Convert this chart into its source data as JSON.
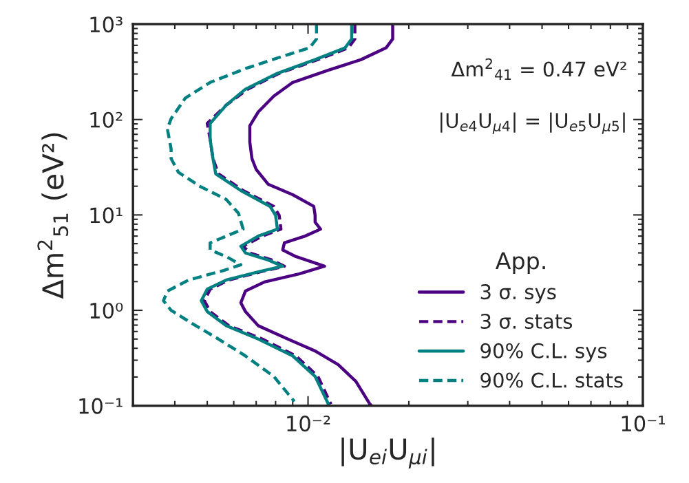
{
  "chart_data": {
    "type": "line",
    "xlabel": "|U$_{ei}$U$_{μi}$|",
    "ylabel": "Δm$^{2}$$_{51}$ (eV²)",
    "log": "xy",
    "xlim": [
      0.003,
      0.1
    ],
    "ylim": [
      0.1,
      1000
    ],
    "xticks": [
      {
        "value": 0.01,
        "label": "10⁻²"
      },
      {
        "value": 0.1,
        "label": "10⁻¹"
      }
    ],
    "yticks": [
      {
        "value": 0.1,
        "label": "10⁻¹"
      },
      {
        "value": 1,
        "label": "10⁰"
      },
      {
        "value": 10,
        "label": "10¹"
      },
      {
        "value": 100,
        "label": "10²"
      },
      {
        "value": 1000,
        "label": "10³"
      }
    ],
    "grid": false,
    "legend": "bottom right",
    "legend_title": "App.",
    "annotations": [
      "Δm$^{2}$$_{41}$ = 0.47 eV²",
      "|U$_{e4}$U$_{μ4}$| = |U$_{e5}$U$_{μ5}$|"
    ],
    "series": [
      {
        "name": "3 σ. sys",
        "color": "#4b0082",
        "line_style": "solid",
        "x": [
          0.0179,
          0.0179,
          0.0171,
          0.0144,
          0.0114,
          0.009,
          0.0079,
          0.0071,
          0.0067,
          0.0067,
          0.0068,
          0.007,
          0.0076,
          0.009,
          0.0104,
          0.0105,
          0.0105,
          0.0109,
          0.0098,
          0.0085,
          0.0084,
          0.0092,
          0.0112,
          0.0094,
          0.0074,
          0.0065,
          0.0063,
          0.0065,
          0.0071,
          0.0087,
          0.0105,
          0.0123,
          0.0139,
          0.0153,
          0.0155
        ],
        "values": [
          1000,
          700,
          564,
          425,
          326,
          245,
          176,
          120,
          86,
          58,
          39,
          30,
          21,
          16.3,
          12.3,
          9.9,
          8.4,
          7.1,
          6.0,
          5.1,
          4.3,
          3.66,
          2.9,
          2.41,
          1.98,
          1.59,
          1.2,
          0.97,
          0.69,
          0.5,
          0.375,
          0.27,
          0.18,
          0.104,
          0.1
        ]
      },
      {
        "name": "3 σ. stats",
        "color": "#4b0082",
        "line_style": "dashed",
        "x": [
          0.0138,
          0.0138,
          0.0132,
          0.0107,
          0.0082,
          0.0066,
          0.0057,
          0.005,
          0.0051,
          0.0052,
          0.0054,
          0.0064,
          0.0079,
          0.0082,
          0.0083,
          0.0073,
          0.0064,
          0.0067,
          0.0078,
          0.0085,
          0.0072,
          0.0058,
          0.0051,
          0.0049,
          0.0051,
          0.0058,
          0.0073,
          0.0092,
          0.0107,
          0.0117
        ],
        "values": [
          1000,
          700,
          564,
          425,
          305,
          208,
          142,
          91,
          62,
          39,
          27,
          18,
          12.3,
          9.9,
          7.1,
          6.0,
          4.7,
          4.0,
          3.37,
          2.9,
          2.53,
          2.08,
          1.67,
          1.26,
          0.97,
          0.69,
          0.5,
          0.333,
          0.203,
          0.104
        ]
      },
      {
        "name": "90% C.L. sys",
        "color": "#008080",
        "line_style": "solid",
        "x": [
          0.0135,
          0.0135,
          0.0129,
          0.0105,
          0.0081,
          0.0065,
          0.0057,
          0.0051,
          0.0051,
          0.0052,
          0.0053,
          0.0063,
          0.0077,
          0.008,
          0.0081,
          0.0071,
          0.0063,
          0.0065,
          0.0076,
          0.0084,
          0.0071,
          0.0057,
          0.005,
          0.0048,
          0.005,
          0.0057,
          0.0071,
          0.009,
          0.0105,
          0.0115
        ],
        "values": [
          1000,
          700,
          564,
          425,
          305,
          208,
          142,
          91,
          62,
          39,
          27,
          18,
          12.3,
          9.9,
          7.1,
          6.0,
          4.7,
          4.0,
          3.37,
          2.9,
          2.53,
          2.08,
          1.67,
          1.26,
          0.97,
          0.69,
          0.5,
          0.333,
          0.203,
          0.104
        ]
      },
      {
        "name": "90% C.L. stats",
        "color": "#008080",
        "line_style": "dashed",
        "x": [
          0.0106,
          0.0106,
          0.0101,
          0.0083,
          0.0065,
          0.0051,
          0.0043,
          0.0039,
          0.0038,
          0.0039,
          0.0039,
          0.0041,
          0.00475,
          0.0057,
          0.0062,
          0.0064,
          0.0057,
          0.0051,
          0.0051,
          0.0057,
          0.0063,
          0.0056,
          0.0044,
          0.0038,
          0.0037,
          0.0039,
          0.0045,
          0.0054,
          0.0065,
          0.0079,
          0.0091
        ],
        "values": [
          1000,
          700,
          564,
          454,
          342,
          245,
          168,
          102,
          80,
          49,
          39,
          28,
          20,
          14.5,
          10.4,
          7.1,
          6.0,
          5.1,
          4.3,
          3.66,
          3.0,
          2.62,
          2.08,
          1.59,
          1.26,
          1.0,
          0.73,
          0.5,
          0.333,
          0.203,
          0.111
        ]
      }
    ]
  }
}
